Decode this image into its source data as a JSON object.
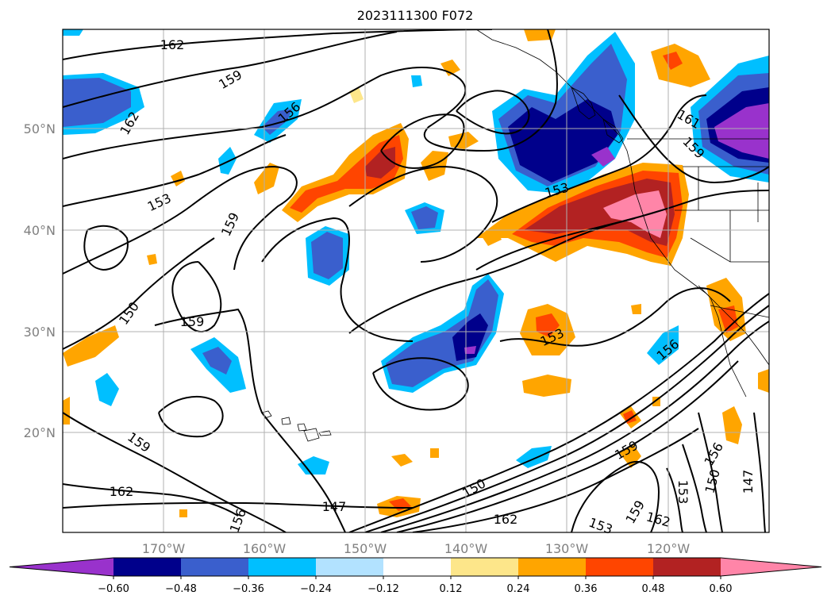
{
  "title": "2023111300 F072",
  "lat_labels": [
    "50°N",
    "40°N",
    "30°N",
    "20°N"
  ],
  "lon_labels": [
    "170°W",
    "160°W",
    "150°W",
    "140°W",
    "130°W",
    "120°W"
  ],
  "colorbar": {
    "colors": [
      "#9932cc",
      "#00008b",
      "#3a5fcd",
      "#00bfff",
      "#b2e2ff",
      "#ffffff",
      "#fde68a",
      "#ffa500",
      "#ff4500",
      "#b22222",
      "#ff85a8"
    ],
    "tick_labels": [
      "−0.60",
      "−0.48",
      "−0.36",
      "−0.24",
      "−0.12",
      "0.12",
      "0.24",
      "0.36",
      "0.48",
      "0.60"
    ]
  },
  "contour_labels": [
    "162",
    "159",
    "162",
    "156",
    "153",
    "159",
    "150",
    "159",
    "153",
    "161",
    "159",
    "156",
    "153",
    "159",
    "162",
    "147",
    "162",
    "156",
    "150",
    "159",
    "153",
    "159",
    "162",
    "156",
    "153",
    "150",
    "147"
  ]
}
